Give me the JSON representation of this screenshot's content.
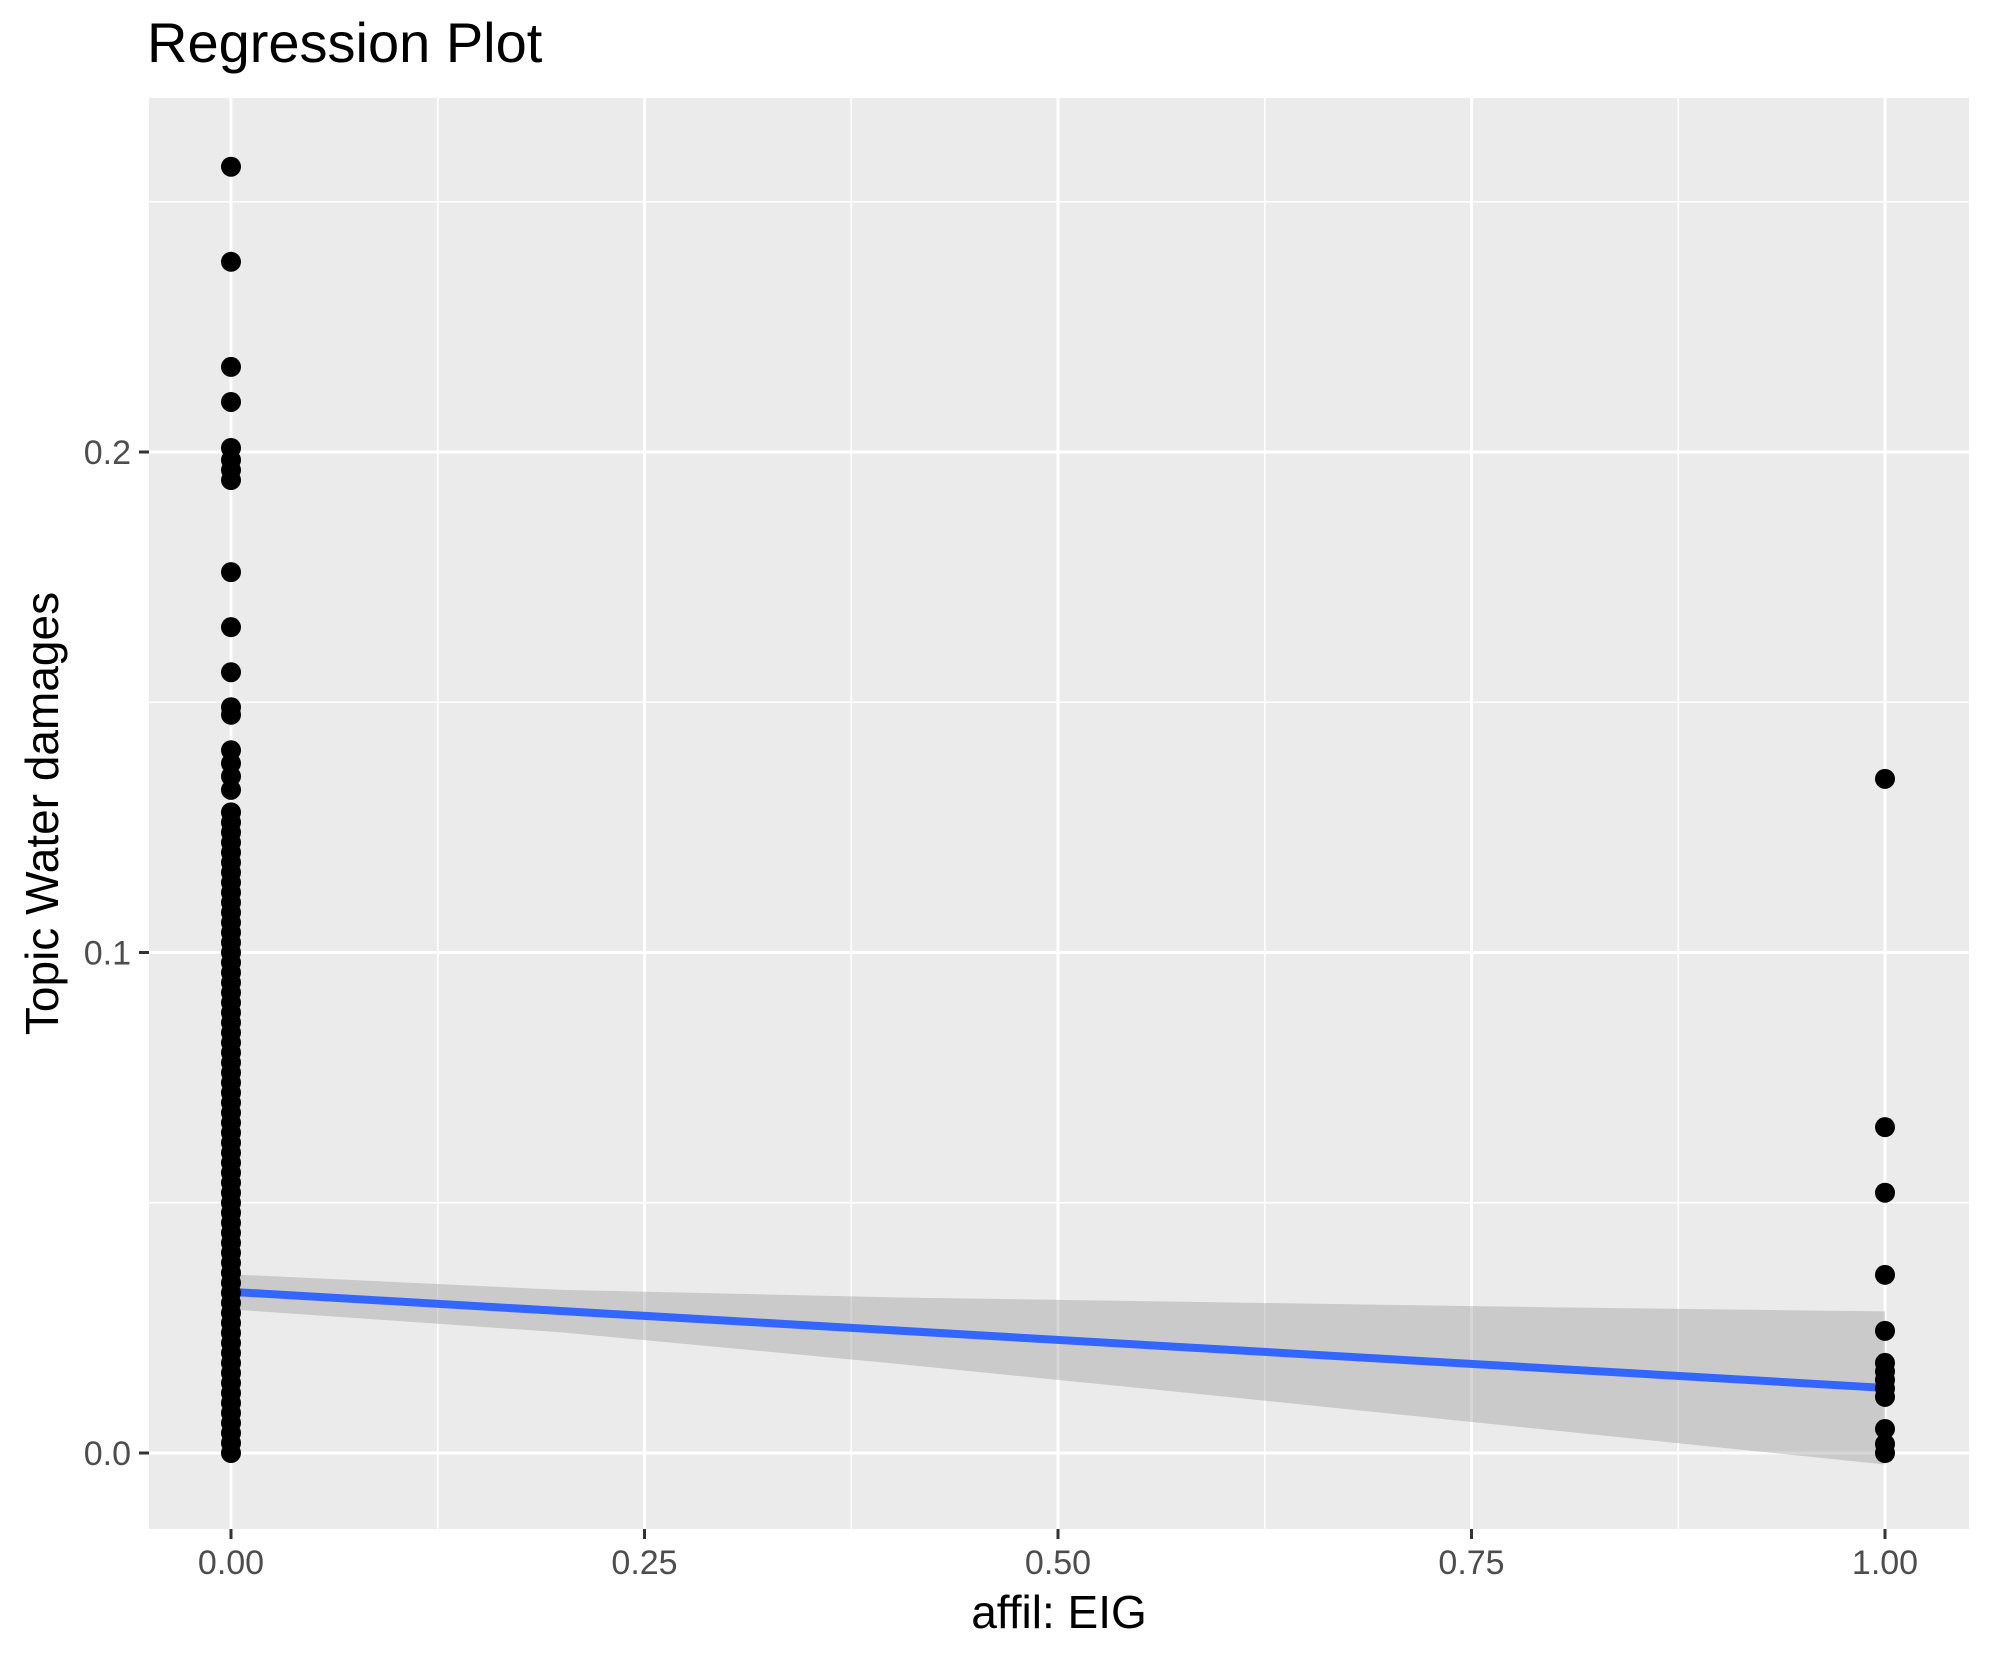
{
  "colors": {
    "outer_bg": "#FFFFFF",
    "panel_bg": "#EBEBEB",
    "gridline": "#FFFFFF",
    "tick_mark": "#333333",
    "tick_label": "#4D4D4D",
    "text": "#000000",
    "point": "#000000",
    "regression_line": "#3366FF",
    "ci_band_fill": "rgba(153,153,153,0.4)"
  },
  "chart_data": {
    "type": "scatter",
    "title": "Regression Plot",
    "xlabel": "affil: EIG",
    "ylabel": "Topic Water damages",
    "legend": "none",
    "grid": "major-and-minor",
    "x_axis": {
      "tick_labels": [
        "0.00",
        "0.25",
        "0.50",
        "0.75",
        "1.00"
      ],
      "tick_values": [
        0,
        0.25,
        0.5,
        0.75,
        1.0
      ],
      "minor_values": [
        0.125,
        0.375,
        0.625,
        0.875
      ],
      "range": [
        -0.0496,
        1.0508
      ]
    },
    "y_axis": {
      "tick_labels": [
        "0.0",
        "0.1",
        "0.2"
      ],
      "tick_values": [
        0,
        0.1,
        0.2
      ],
      "minor_values": [
        0.05,
        0.15,
        0.25
      ],
      "range": [
        -0.0152,
        0.2707
      ]
    },
    "series": [
      {
        "name": "affil_EIG_0",
        "x": 0,
        "y": [
          0.257,
          0.238,
          0.217,
          0.21,
          0.2008,
          0.1984,
          0.1964,
          0.1944,
          0.176,
          0.165,
          0.156,
          0.149,
          0.1475,
          0.1404,
          0.1378,
          0.1352,
          0.1325,
          0.128,
          0.126,
          0.124,
          0.122,
          0.12,
          0.118,
          0.116,
          0.114,
          0.112,
          0.11,
          0.108,
          0.106,
          0.104,
          0.102,
          0.1,
          0.098,
          0.096,
          0.094,
          0.092,
          0.09,
          0.088,
          0.086,
          0.084,
          0.082,
          0.08,
          0.078,
          0.076,
          0.074,
          0.072,
          0.07,
          0.068,
          0.066,
          0.064,
          0.062,
          0.06,
          0.058,
          0.056,
          0.054,
          0.052,
          0.05,
          0.048,
          0.046,
          0.044,
          0.042,
          0.04,
          0.038,
          0.036,
          0.034,
          0.032,
          0.03,
          0.028,
          0.026,
          0.024,
          0.022,
          0.02,
          0.018,
          0.016,
          0.014,
          0.012,
          0.01,
          0.008,
          0.006,
          0.004,
          0.002,
          0.0
        ]
      },
      {
        "name": "affil_EIG_1",
        "x": 1,
        "y": [
          0.1347,
          0.0651,
          0.052,
          0.0356,
          0.0244,
          0.018,
          0.0163,
          0.0146,
          0.0129,
          0.0112,
          0.0048,
          0.0018,
          0.0
        ]
      }
    ],
    "regression_line": {
      "x": [
        0,
        1
      ],
      "y": [
        0.0322,
        0.013
      ]
    },
    "confidence_band": {
      "x": [
        0.0,
        0.2,
        0.4,
        0.6,
        0.8,
        1.0
      ],
      "upper": [
        0.0357,
        0.0326,
        0.0311,
        0.0301,
        0.0291,
        0.0283
      ],
      "lower": [
        0.0287,
        0.0241,
        0.0179,
        0.0113,
        0.0045,
        -0.0023
      ]
    },
    "point_radius_px": 10
  }
}
